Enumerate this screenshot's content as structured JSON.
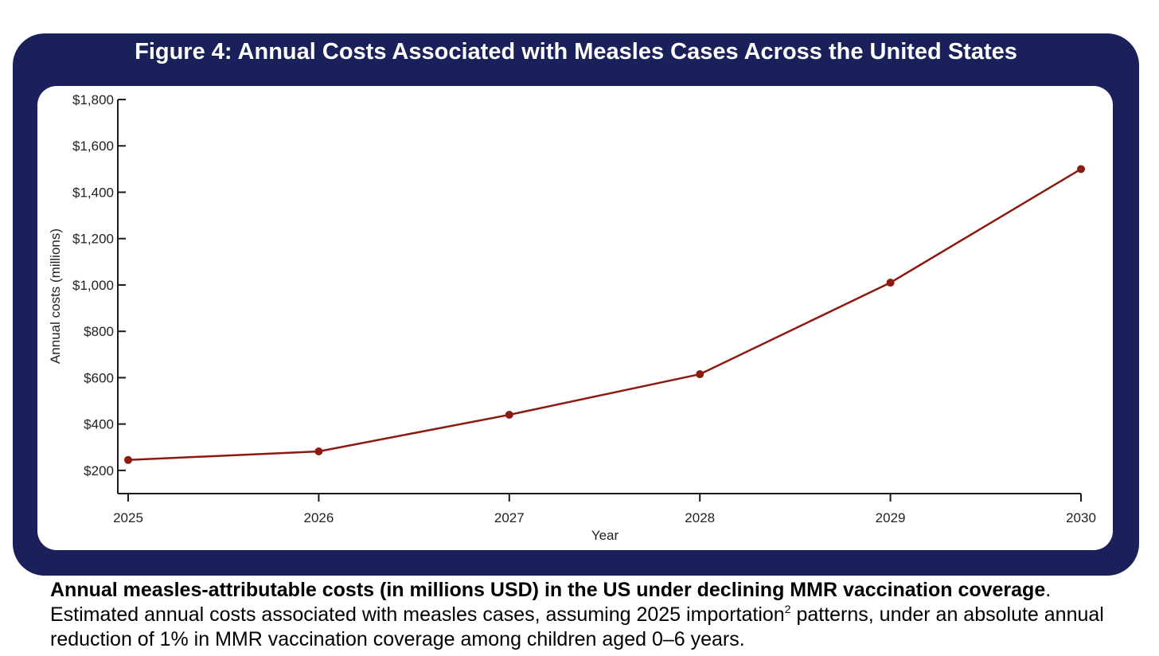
{
  "colors": {
    "frame": "#19205a",
    "line": "#8b1a10",
    "axis": "#1a1a1a"
  },
  "figure": {
    "title": "Figure 4: Annual Costs Associated with Measles Cases Across the United States"
  },
  "chart_data": {
    "type": "line",
    "title": "Figure 4: Annual Costs Associated with Measles Cases Across the United States",
    "xlabel": "Year",
    "ylabel": "Annual costs (millions)",
    "x": [
      2025,
      2026,
      2027,
      2028,
      2029,
      2030
    ],
    "series": [
      {
        "name": "Annual measles-attributable costs",
        "values": [
          245,
          282,
          440,
          615,
          1010,
          1500
        ]
      }
    ],
    "xlim": [
      2025,
      2030
    ],
    "ylim": [
      100,
      1800
    ],
    "yticks": [
      200,
      400,
      600,
      800,
      1000,
      1200,
      1400,
      1600,
      1800
    ],
    "ytick_labels": [
      "$200",
      "$400",
      "$600",
      "$800",
      "$1,000",
      "$1,200",
      "$1,400",
      "$1,600",
      "$1,800"
    ],
    "xtick_labels": [
      "2025",
      "2026",
      "2027",
      "2028",
      "2029",
      "2030"
    ],
    "grid": false,
    "legend": "none"
  },
  "caption": {
    "bold_part": "Annual measles-attributable costs (in millions USD) in the US under declining MMR vaccination coverage",
    "text_before_sup": ". Estimated annual costs associated with measles cases, assuming 2025 importation",
    "sup": "2",
    "text_after_sup": " patterns, under an absolute annual reduction of 1% in MMR vaccination coverage among children aged 0–6 years."
  }
}
